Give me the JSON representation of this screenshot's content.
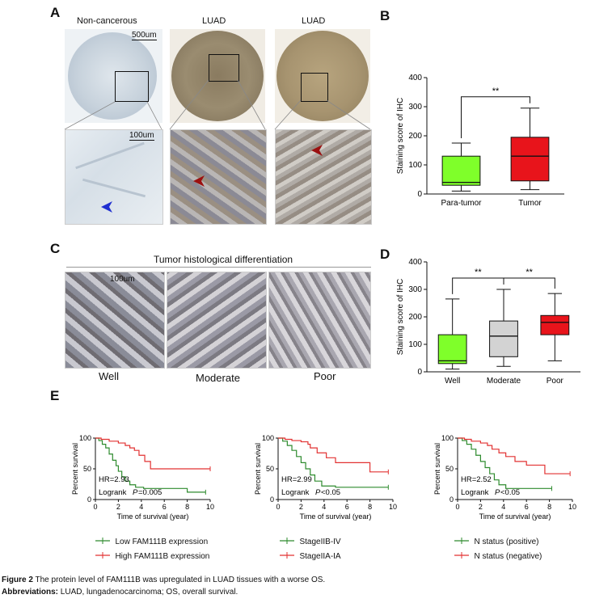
{
  "panels": {
    "A": "A",
    "B": "B",
    "C": "C",
    "D": "D",
    "E": "E"
  },
  "panel_a": {
    "col_labels": [
      "Non-cancerous",
      "LUAD",
      "LUAD"
    ],
    "scale_top": "500um",
    "scale_bottom": "100um"
  },
  "panel_c": {
    "title": "Tumor histological differentiation",
    "scale": "100um",
    "labels": [
      "Well",
      "Moderate",
      "Poor"
    ]
  },
  "colors": {
    "green": "#7fff2a",
    "red": "#e8141b",
    "grey": "#d3d3d3",
    "km_green": "#2e8b2e",
    "km_red": "#e23232"
  },
  "chart_data": [
    {
      "id": "B",
      "type": "box",
      "ylabel": "Staining score of IHC",
      "ylim": [
        0,
        400
      ],
      "yticks": [
        0,
        100,
        200,
        300,
        400
      ],
      "categories": [
        "Para-tumor",
        "Tumor"
      ],
      "boxes": [
        {
          "name": "Para-tumor",
          "min": 10,
          "q1": 30,
          "median": 40,
          "q3": 130,
          "max": 175,
          "color": "#7fff2a"
        },
        {
          "name": "Tumor",
          "min": 15,
          "q1": 45,
          "median": 130,
          "q3": 195,
          "max": 295,
          "color": "#e8141b"
        }
      ],
      "significance": [
        {
          "from": "Para-tumor",
          "to": "Tumor",
          "label": "**"
        }
      ]
    },
    {
      "id": "D",
      "type": "box",
      "ylabel": "Staining score of IHC",
      "ylim": [
        0,
        400
      ],
      "yticks": [
        0,
        100,
        200,
        300,
        400
      ],
      "categories": [
        "Well",
        "Moderate",
        "Poor"
      ],
      "boxes": [
        {
          "name": "Well",
          "min": 10,
          "q1": 30,
          "median": 40,
          "q3": 135,
          "max": 265,
          "color": "#7fff2a"
        },
        {
          "name": "Moderate",
          "min": 20,
          "q1": 55,
          "median": 130,
          "q3": 185,
          "max": 300,
          "color": "#d3d3d3"
        },
        {
          "name": "Poor",
          "min": 40,
          "q1": 135,
          "median": 180,
          "q3": 205,
          "max": 285,
          "color": "#e8141b"
        }
      ],
      "significance": [
        {
          "from": "Well",
          "to": "Moderate",
          "label": "**"
        },
        {
          "from": "Moderate",
          "to": "Poor",
          "label": "**"
        }
      ]
    },
    {
      "id": "E1",
      "type": "line",
      "ylabel": "Percent survival",
      "xlabel": "Time of survival (year)",
      "xlim": [
        0,
        10
      ],
      "ylim": [
        0,
        100
      ],
      "xticks": [
        0,
        2,
        4,
        6,
        8,
        10
      ],
      "yticks": [
        0,
        50,
        100
      ],
      "hr": "HR=2.93",
      "logrank": "Logrank",
      "p_label": "P",
      "p_value": "=0.005",
      "series": [
        {
          "name": "Low FAM111B expression",
          "color": "#2e8b2e",
          "x": [
            0,
            0.3,
            0.6,
            0.9,
            1.2,
            1.5,
            1.8,
            2.0,
            2.3,
            2.6,
            3.0,
            3.5,
            4.2,
            8.0,
            9.6
          ],
          "y": [
            100,
            96,
            90,
            84,
            74,
            64,
            55,
            46,
            37,
            30,
            24,
            20,
            18,
            12,
            12
          ]
        },
        {
          "name": "High FAM111B expression",
          "color": "#e23232",
          "x": [
            0,
            0.5,
            1.2,
            2.0,
            2.6,
            3.0,
            3.4,
            3.8,
            4.3,
            4.8,
            10
          ],
          "y": [
            100,
            98,
            95,
            92,
            88,
            84,
            80,
            72,
            62,
            50,
            50
          ]
        }
      ]
    },
    {
      "id": "E2",
      "type": "line",
      "ylabel": "Percent survival",
      "xlabel": "Time of survival (year)",
      "xlim": [
        0,
        10
      ],
      "ylim": [
        0,
        100
      ],
      "xticks": [
        0,
        2,
        4,
        6,
        8,
        10
      ],
      "yticks": [
        0,
        50,
        100
      ],
      "hr": "HR=2.99",
      "logrank": "Logrank",
      "p_label": "P",
      "p_value": "<0.05",
      "series": [
        {
          "name": "StageIIB-IV",
          "color": "#2e8b2e",
          "x": [
            0,
            0.4,
            0.8,
            1.2,
            1.6,
            2.0,
            2.4,
            2.8,
            3.2,
            3.8,
            5.0,
            9.6
          ],
          "y": [
            100,
            95,
            88,
            80,
            70,
            60,
            50,
            40,
            30,
            22,
            20,
            20
          ]
        },
        {
          "name": "StageIIA-IA",
          "color": "#e23232",
          "x": [
            0,
            0.6,
            1.2,
            2.0,
            2.6,
            2.8,
            3.4,
            4.2,
            5.0,
            7.8,
            8.0,
            9.6
          ],
          "y": [
            100,
            98,
            96,
            94,
            90,
            84,
            76,
            68,
            60,
            60,
            45,
            45
          ]
        }
      ]
    },
    {
      "id": "E3",
      "type": "line",
      "ylabel": "Percent survival",
      "xlabel": "Time of survival (year)",
      "xlim": [
        0,
        10
      ],
      "ylim": [
        0,
        100
      ],
      "xticks": [
        0,
        2,
        4,
        6,
        8,
        10
      ],
      "yticks": [
        0,
        50,
        100
      ],
      "hr": "HR=2.52",
      "logrank": "Logrank",
      "p_label": "P",
      "p_value": "<0.05",
      "series": [
        {
          "name": "N status (positive)",
          "color": "#2e8b2e",
          "x": [
            0,
            0.4,
            0.8,
            1.2,
            1.6,
            2.0,
            2.4,
            2.8,
            3.2,
            3.6,
            4.2,
            8.2
          ],
          "y": [
            100,
            96,
            90,
            82,
            72,
            62,
            52,
            42,
            32,
            24,
            18,
            18
          ]
        },
        {
          "name": "N status (negative)",
          "color": "#e23232",
          "x": [
            0,
            0.6,
            1.2,
            2.0,
            2.6,
            3.0,
            3.6,
            4.2,
            5.0,
            6.0,
            7.6,
            9.8
          ],
          "y": [
            100,
            98,
            95,
            92,
            88,
            82,
            76,
            70,
            62,
            56,
            42,
            42
          ]
        }
      ]
    }
  ],
  "caption": {
    "figure_label": "Figure 2",
    "figure_text": " The protein level of FAM111B was upregulated in LUAD tissues with a worse OS.",
    "abbrev_label": "Abbreviations:",
    "abbrev_text": " LUAD, lungadenocarcinoma; OS, overall survival."
  }
}
